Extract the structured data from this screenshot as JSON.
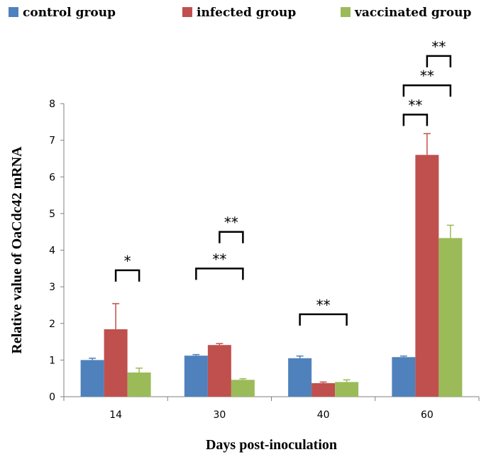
{
  "chart_data": {
    "type": "bar",
    "categories": [
      "14",
      "30",
      "40",
      "60"
    ],
    "series": [
      {
        "name": "control group",
        "color": "#4f81bd",
        "values": [
          1.0,
          1.12,
          1.05,
          1.08
        ],
        "errors": [
          0.05,
          0.03,
          0.06,
          0.03
        ]
      },
      {
        "name": "infected group",
        "color": "#c0504d",
        "values": [
          1.84,
          1.41,
          0.37,
          6.6
        ],
        "errors": [
          0.7,
          0.04,
          0.03,
          0.58
        ]
      },
      {
        "name": "vaccinated group",
        "color": "#9bbb59",
        "values": [
          0.66,
          0.46,
          0.4,
          4.33
        ],
        "errors": [
          0.12,
          0.03,
          0.06,
          0.35
        ]
      }
    ],
    "xlabel": "Days post-inoculation",
    "ylabel": "Relative value of OaCdc42 mRNA",
    "ylim": [
      0,
      8
    ],
    "yticks": [
      "0",
      "1",
      "2",
      "3",
      "4",
      "5",
      "6",
      "7",
      "8"
    ],
    "legend_position": "top",
    "significance": [
      {
        "category": "14",
        "from": "infected group",
        "to": "vaccinated group",
        "label": "*",
        "y": 3.45
      },
      {
        "category": "30",
        "from": "control group",
        "to": "vaccinated group",
        "label": "**",
        "y": 3.5
      },
      {
        "category": "30",
        "from": "infected group",
        "to": "vaccinated group",
        "label": "**",
        "y": 4.5
      },
      {
        "category": "40",
        "from": "control group",
        "to": "vaccinated group",
        "label": "**",
        "y": 2.25
      },
      {
        "category": "60",
        "from": "control group",
        "to": "infected group",
        "label": "**",
        "y": 7.7
      },
      {
        "category": "60",
        "from": "control group",
        "to": "vaccinated group",
        "label": "**",
        "y": 8.5
      },
      {
        "category": "60",
        "from": "infected group",
        "to": "vaccinated group",
        "label": "**",
        "y": 9.3
      }
    ]
  }
}
